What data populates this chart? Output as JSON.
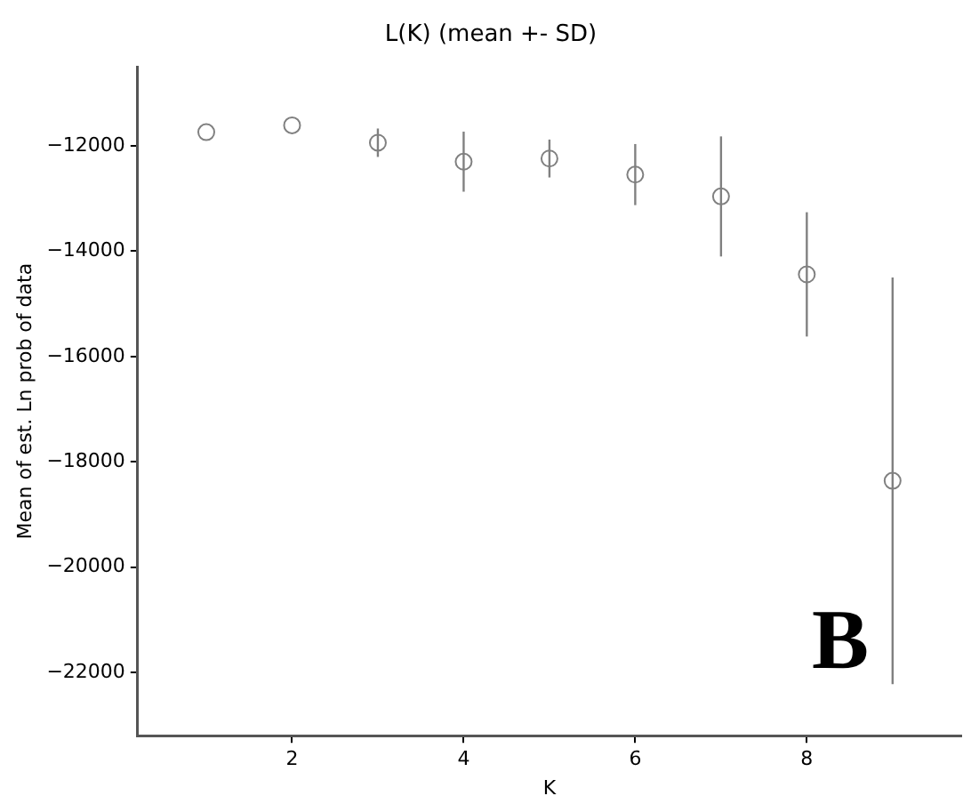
{
  "chart_data": {
    "type": "scatter",
    "title": "L(K) (mean +- SD)",
    "xlabel": "K",
    "ylabel": "Mean of est. Ln prob of data",
    "x": [
      1,
      2,
      3,
      4,
      5,
      6,
      7,
      8,
      9
    ],
    "values": [
      -11740,
      -11610,
      -11940,
      -12300,
      -12240,
      -12545,
      -12960,
      -14440,
      -18360
    ],
    "errors": [
      null,
      null,
      270,
      570,
      360,
      580,
      1140,
      1180,
      3860
    ],
    "color": "#808080",
    "marker": "circle",
    "grid": false,
    "legend": false,
    "xlim": [
      0.2,
      9.8
    ],
    "xticks": [
      2,
      4,
      6,
      8
    ],
    "ylim": [
      -23200,
      -10500
    ],
    "yticks": [
      -22000,
      -20000,
      -18000,
      -16000,
      -14000,
      -12000
    ],
    "annotations": [
      "B"
    ]
  }
}
